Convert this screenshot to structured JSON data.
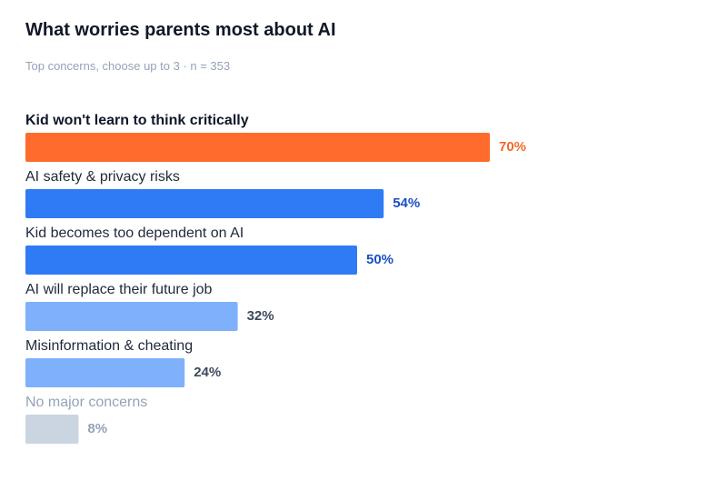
{
  "chart_data": {
    "type": "bar",
    "orientation": "horizontal",
    "title": "What worries parents most about AI",
    "subtitle": "Top concerns, choose up to 3 · n = 353",
    "categories": [
      "Kid won't learn to think critically",
      "AI safety & privacy risks",
      "Kid becomes too dependent on AI",
      "AI will replace their future job",
      "Misinformation & cheating",
      "No major concerns"
    ],
    "values": [
      70,
      54,
      50,
      32,
      24,
      8
    ],
    "value_labels": [
      "70%",
      "54%",
      "50%",
      "32%",
      "24%",
      "8%"
    ],
    "colors": [
      "#ff6b2c",
      "#2f7bf6",
      "#2f7bf6",
      "#7fb0fb",
      "#7fb0fb",
      "#cbd5e1"
    ],
    "label_colors": [
      "#f26a2b",
      "#1d4fc4",
      "#1d4fc4",
      "#3d4a5c",
      "#3d4a5c",
      "#94a3b8"
    ],
    "category_colors": [
      "#0f172a",
      "#1e293b",
      "#1e293b",
      "#1e293b",
      "#1e293b",
      "#94a3b8"
    ]
  }
}
